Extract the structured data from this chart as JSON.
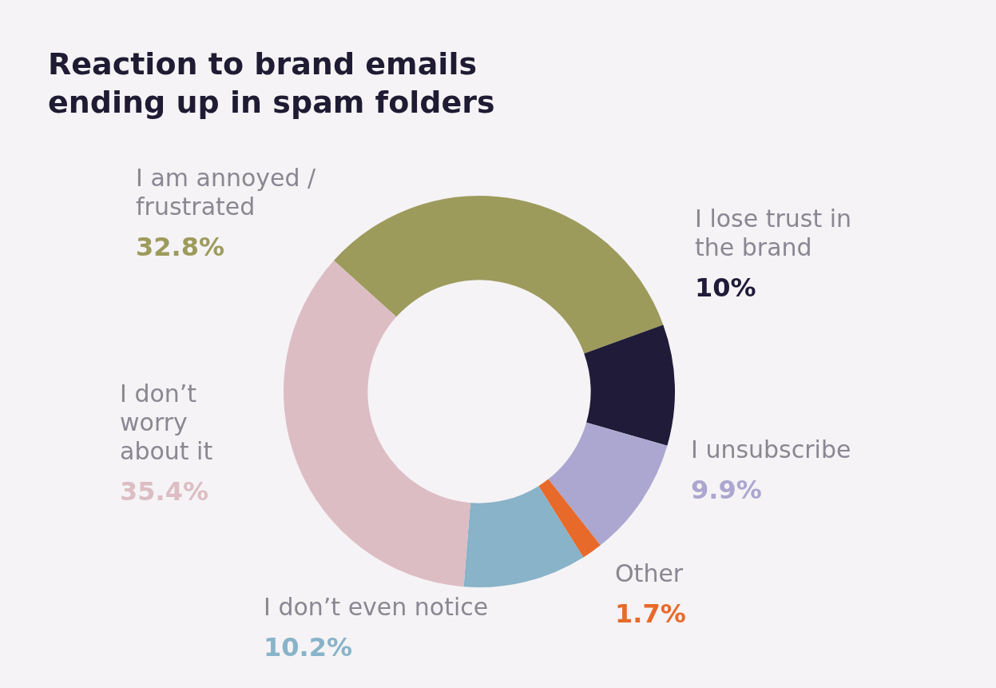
{
  "chart_data": {
    "type": "donut",
    "title": "Reaction to brand emails ending up in spam folders",
    "categories": [
      "I am annoyed / frustrated",
      "I lose trust in the brand",
      "I unsubscribe",
      "Other",
      "I don’t even notice",
      "I don’t worry about it"
    ],
    "values": [
      32.8,
      10,
      9.9,
      1.7,
      10.2,
      35.4
    ],
    "value_labels": [
      "32.8%",
      "10%",
      "9.9%",
      "1.7%",
      "10.2%",
      "35.4%"
    ],
    "colors": [
      "#9c9b5c",
      "#1f1b38",
      "#aba7d0",
      "#e86a2a",
      "#88b3c9",
      "#ddbdc4"
    ],
    "legend": false
  }
}
